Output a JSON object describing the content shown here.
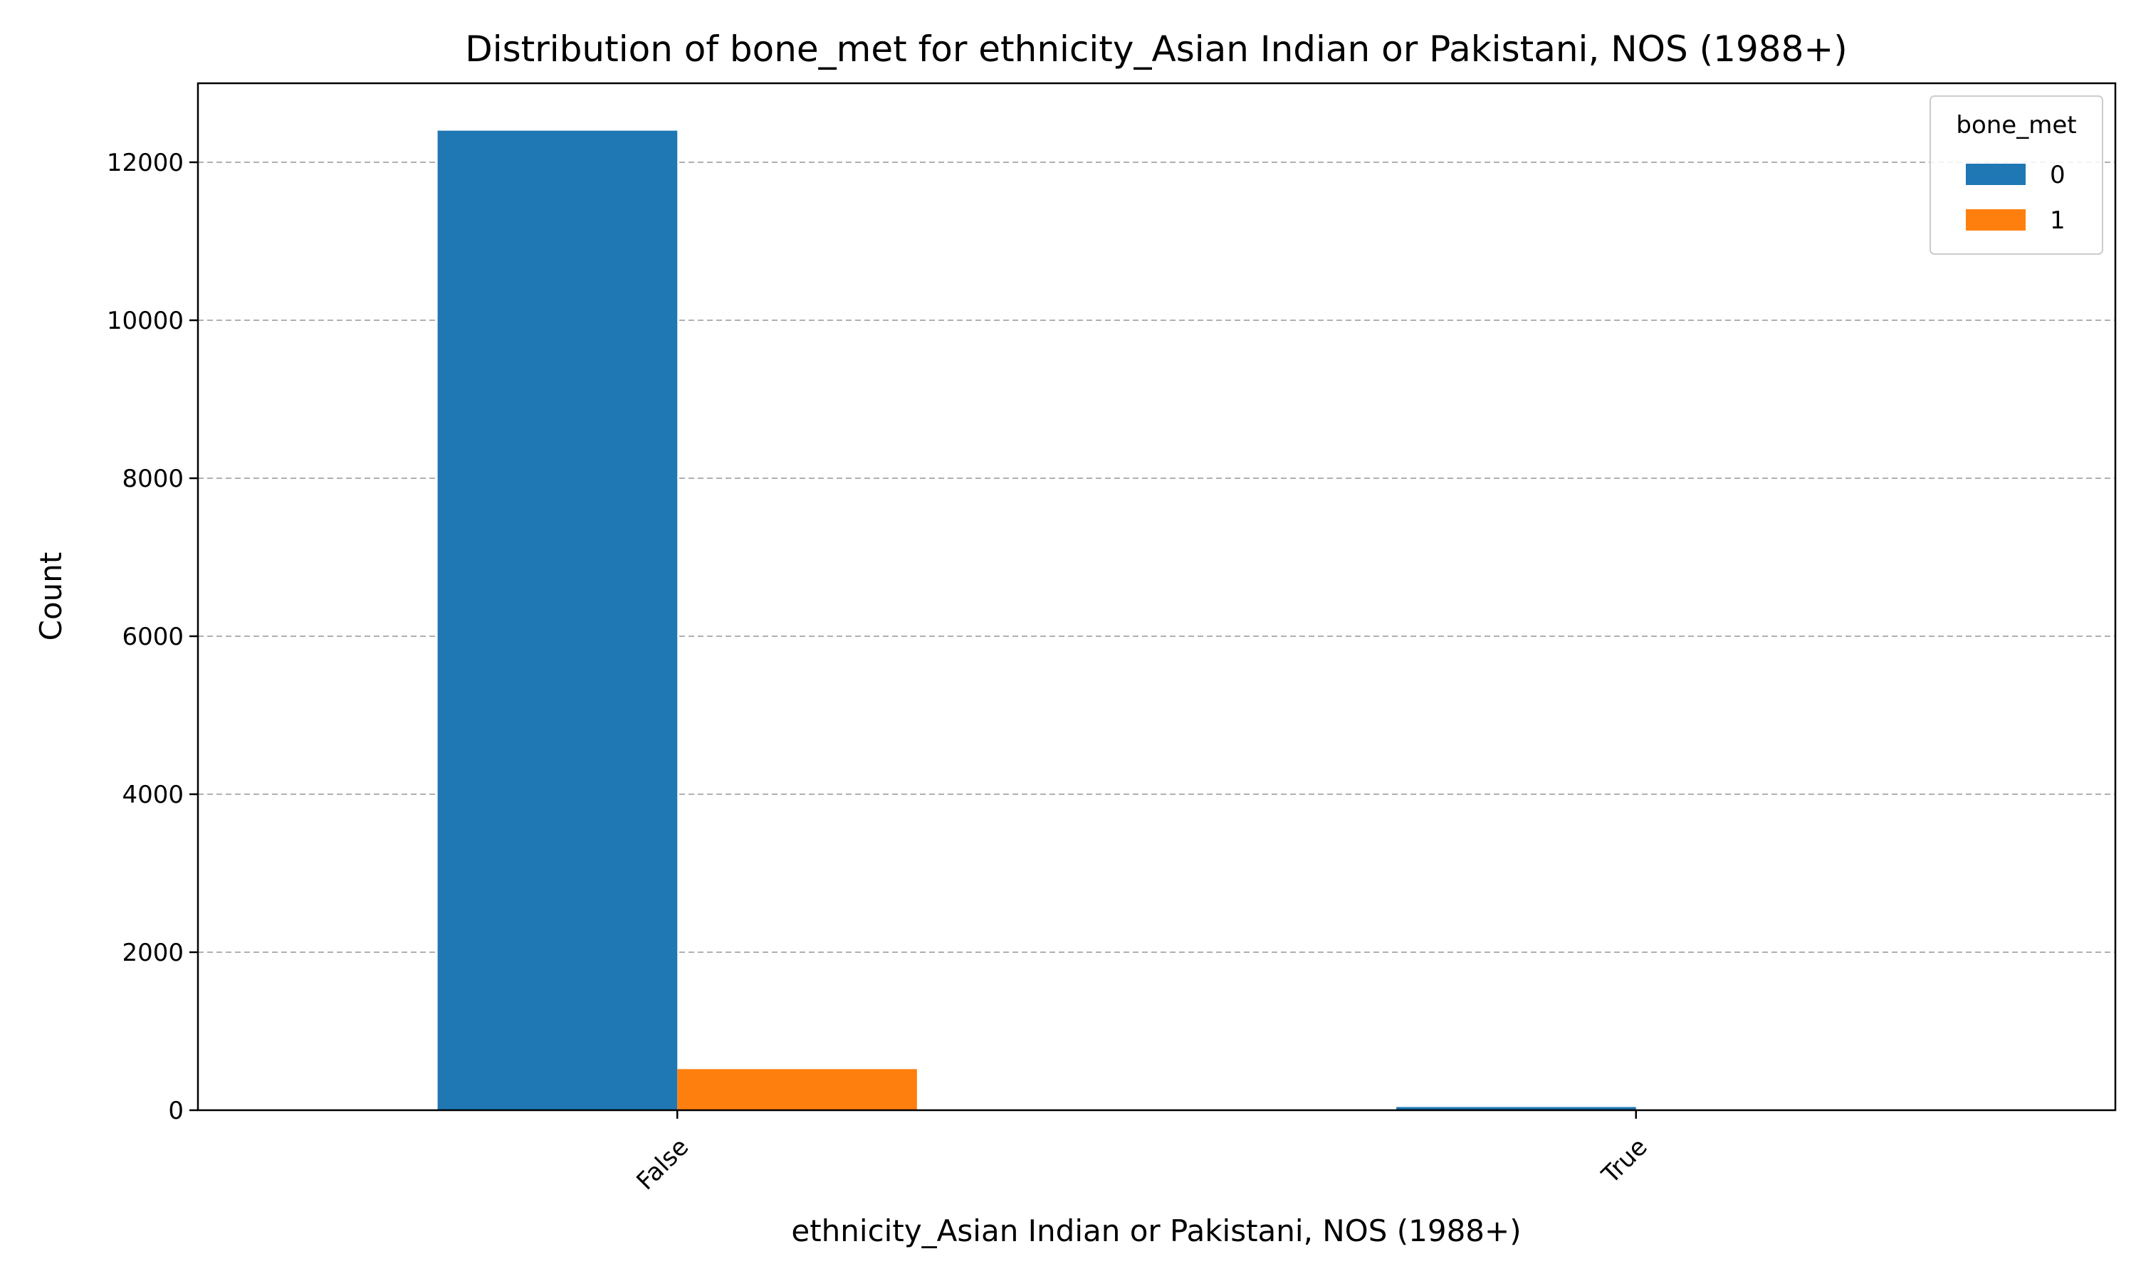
{
  "chart_data": {
    "type": "bar",
    "title": "Distribution of bone_met for ethnicity_Asian Indian or Pakistani, NOS (1988+)",
    "xlabel": "ethnicity_Asian Indian or Pakistani, NOS (1988+)",
    "ylabel": "Count",
    "categories": [
      "False",
      "True"
    ],
    "series": [
      {
        "name": "0",
        "values": [
          12400,
          40
        ],
        "color": "#1f77b4"
      },
      {
        "name": "1",
        "values": [
          520,
          2
        ],
        "color": "#ff7f0e"
      }
    ],
    "ylim": [
      0,
      13000
    ],
    "yticks": [
      0,
      2000,
      4000,
      6000,
      8000,
      10000,
      12000
    ],
    "ytick_labels": [
      "0",
      "2000",
      "4000",
      "6000",
      "8000",
      "10000",
      "12000"
    ],
    "grid": "y-dashed",
    "legend": {
      "title": "bone_met",
      "placement": "top-right"
    }
  }
}
